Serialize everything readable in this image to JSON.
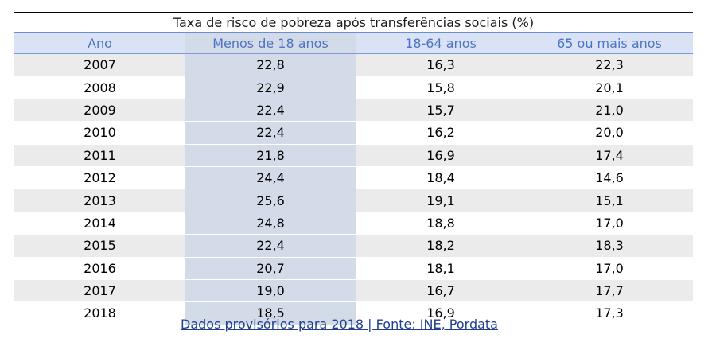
{
  "table": {
    "title": "Taxa de risco de pobreza após transferências sociais (%)",
    "columns": [
      "Ano",
      "Menos de 18 anos",
      "18-64 anos",
      "65 ou mais anos"
    ],
    "rows": [
      [
        "2007",
        "22,8",
        "16,3",
        "22,3"
      ],
      [
        "2008",
        "22,9",
        "15,8",
        "20,1"
      ],
      [
        "2009",
        "22,4",
        "15,7",
        "21,0"
      ],
      [
        "2010",
        "22,4",
        "16,2",
        "20,0"
      ],
      [
        "2011",
        "21,8",
        "16,9",
        "17,4"
      ],
      [
        "2012",
        "24,4",
        "18,4",
        "14,6"
      ],
      [
        "2013",
        "25,6",
        "19,1",
        "15,1"
      ],
      [
        "2014",
        "24,8",
        "18,8",
        "17,0"
      ],
      [
        "2015",
        "22,4",
        "18,2",
        "18,3"
      ],
      [
        "2016",
        "20,7",
        "18,1",
        "17,0"
      ],
      [
        "2017",
        "19,0",
        "16,7",
        "17,7"
      ],
      [
        "2018",
        "18,5",
        "16,9",
        "17,3"
      ]
    ],
    "footnote": "Dados provisórios para 2018 | Fonte: INE, Pordata",
    "colors": {
      "header_text": "#4f74c4",
      "header_bg": "#d9e3f5",
      "highlight_column_bg": "#d3dbe8",
      "stripe_bg": "#ebebeb",
      "footnote_text": "#1f3f8f"
    }
  }
}
